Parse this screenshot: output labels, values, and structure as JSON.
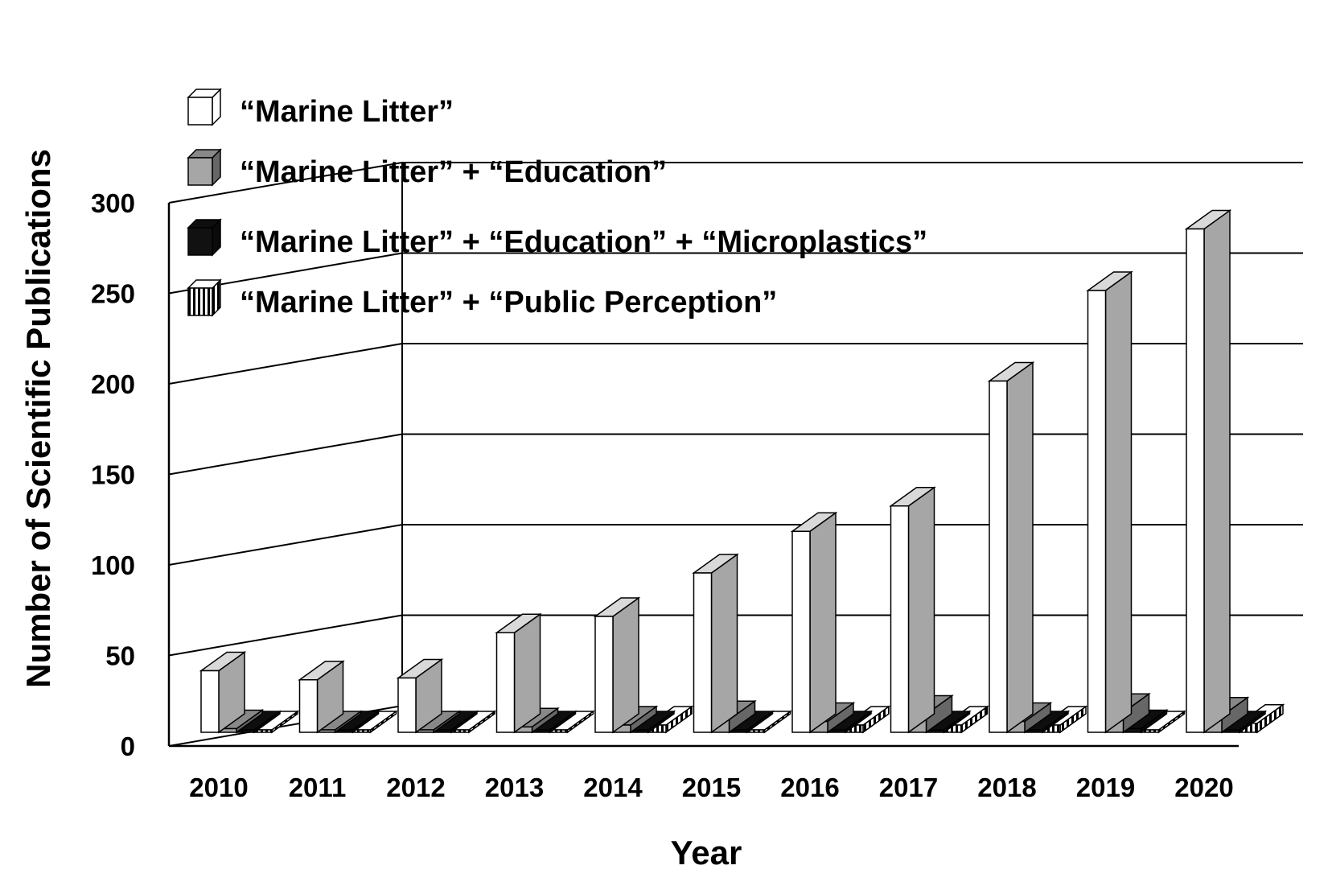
{
  "chart_data": {
    "type": "bar",
    "style": "3d-grouped",
    "title": "",
    "xlabel": "Year",
    "ylabel": "Number of Scientific Publications",
    "ylim": [
      0,
      300
    ],
    "yticks": [
      0,
      50,
      100,
      150,
      200,
      250,
      300
    ],
    "grid": true,
    "legend_position": "top-left",
    "categories": [
      "2010",
      "2011",
      "2012",
      "2013",
      "2014",
      "2015",
      "2016",
      "2017",
      "2018",
      "2019",
      "2020"
    ],
    "series": [
      {
        "name": "“Marine Litter”",
        "color": "#ffffff",
        "pattern": "solid",
        "values": [
          34,
          29,
          30,
          55,
          64,
          88,
          111,
          125,
          194,
          244,
          278
        ]
      },
      {
        "name": "“Marine Litter” + “Education”",
        "color": "#a6a6a6",
        "pattern": "solid",
        "values": [
          2,
          0,
          0,
          3,
          4,
          7,
          6,
          10,
          6,
          11,
          9
        ]
      },
      {
        "name": "“Marine Litter” + “Education” + “Microplastics”",
        "color": "#111111",
        "pattern": "solid",
        "values": [
          0,
          0,
          0,
          0,
          0,
          0,
          0,
          0,
          0,
          2,
          0
        ]
      },
      {
        "name": "“Marine Litter” + “Public Perception”",
        "color": "#ffffff",
        "pattern": "vertical-stripes",
        "values": [
          0,
          0,
          0,
          0,
          4,
          0,
          4,
          4,
          4,
          0,
          5
        ]
      }
    ]
  }
}
